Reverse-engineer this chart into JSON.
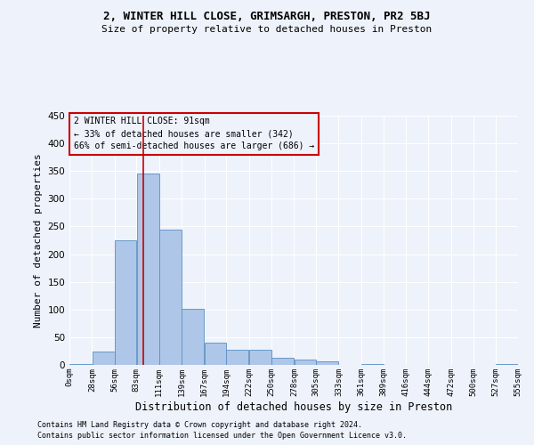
{
  "title1": "2, WINTER HILL CLOSE, GRIMSARGH, PRESTON, PR2 5BJ",
  "title2": "Size of property relative to detached houses in Preston",
  "xlabel": "Distribution of detached houses by size in Preston",
  "ylabel": "Number of detached properties",
  "footer1": "Contains HM Land Registry data © Crown copyright and database right 2024.",
  "footer2": "Contains public sector information licensed under the Open Government Licence v3.0.",
  "annotation_line1": "2 WINTER HILL CLOSE: 91sqm",
  "annotation_line2": "← 33% of detached houses are smaller (342)",
  "annotation_line3": "66% of semi-detached houses are larger (686) →",
  "property_size": 91,
  "bin_edges": [
    0,
    28,
    56,
    83,
    111,
    139,
    167,
    194,
    222,
    250,
    278,
    305,
    333,
    361,
    389,
    416,
    444,
    472,
    500,
    527,
    555
  ],
  "bar_heights": [
    2,
    24,
    225,
    345,
    245,
    101,
    40,
    28,
    27,
    13,
    10,
    6,
    0,
    1,
    0,
    0,
    0,
    0,
    0,
    1
  ],
  "bar_color": "#aec6e8",
  "bar_edge_color": "#5a8fc2",
  "vline_color": "#cc0000",
  "vline_x": 91,
  "box_color": "#cc0000",
  "ylim": [
    0,
    450
  ],
  "yticks": [
    0,
    50,
    100,
    150,
    200,
    250,
    300,
    350,
    400,
    450
  ],
  "bg_color": "#eef2fb",
  "grid_color": "#ffffff"
}
